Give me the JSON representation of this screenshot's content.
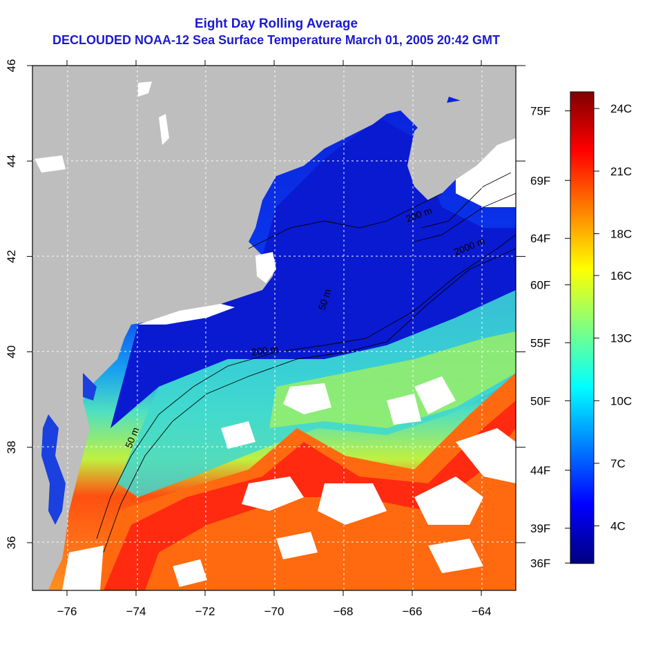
{
  "title_line1": "Eight Day Rolling Average",
  "title_line2": "DECLOUDED NOAA-12 Sea Surface Temperature March 01, 2005 20:42 GMT",
  "map": {
    "lon_range": [
      -77,
      -63
    ],
    "lat_range": [
      35,
      46
    ],
    "x_ticks": [
      "−76",
      "−74",
      "−72",
      "−70",
      "−68",
      "−66",
      "−64"
    ],
    "x_tick_values": [
      -76,
      -74,
      -72,
      -70,
      -68,
      -66,
      -64
    ],
    "y_ticks": [
      "36",
      "38",
      "40",
      "42",
      "44",
      "46"
    ],
    "y_tick_values": [
      36,
      38,
      40,
      42,
      44,
      46
    ],
    "contour_labels": [
      "50 m",
      "200 m",
      "50 m",
      "200 m",
      "2000 m"
    ],
    "colors": {
      "land": "#bebebe",
      "cloud": "#ffffff",
      "frame": "#000000"
    }
  },
  "colorbar": {
    "celsius_labels": [
      "24C",
      "21C",
      "18C",
      "16C",
      "13C",
      "10C",
      "7C",
      "4C"
    ],
    "celsius_values": [
      24,
      21,
      18,
      16,
      13,
      10,
      7,
      4
    ],
    "fahrenheit_labels": [
      "75F",
      "69F",
      "64F",
      "60F",
      "55F",
      "50F",
      "44F",
      "39F",
      "36F"
    ],
    "fahrenheit_values": [
      75,
      69,
      64,
      60,
      55,
      50,
      44,
      39,
      36
    ],
    "range_c": [
      2.2,
      24.8
    ],
    "stops": [
      "#00007f",
      "#0000ff",
      "#0080ff",
      "#00ffff",
      "#80ff80",
      "#ffff00",
      "#ff8000",
      "#ff0000",
      "#7f0000"
    ]
  }
}
